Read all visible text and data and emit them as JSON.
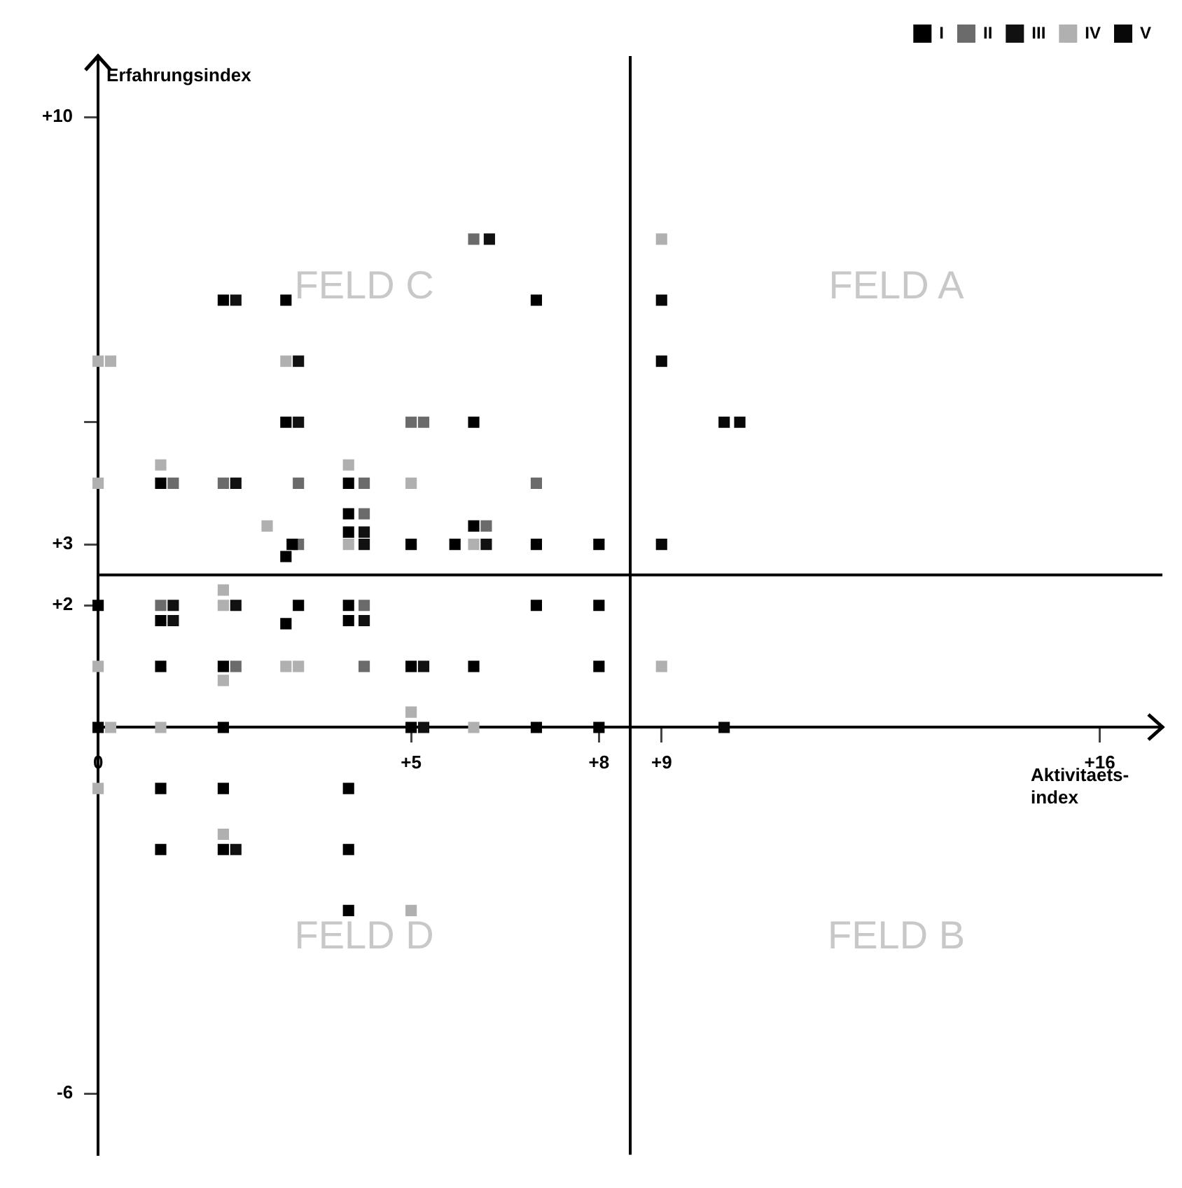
{
  "chart_data": {
    "type": "scatter",
    "xlabel": "Aktivitaets-index",
    "ylabel": "Erfahrungsindex",
    "xlim": [
      0,
      17
    ],
    "ylim": [
      -7,
      11
    ],
    "xticks": [
      0,
      {
        "value": 5,
        "label": "+5"
      },
      {
        "value": 8,
        "label": "+8"
      },
      {
        "value": 9,
        "label": "+9"
      },
      {
        "value": 16,
        "label": "+16"
      }
    ],
    "yticks": [
      -6,
      {
        "value": 2,
        "label": "+2"
      },
      {
        "value": 3,
        "label": "+3"
      },
      {
        "value": 5,
        "label": null
      },
      {
        "value": 10,
        "label": "+10"
      }
    ],
    "marker": "square",
    "legend": "top right",
    "ref_lines": [
      {
        "axis": "x",
        "value": 8.5,
        "color": "#000000"
      },
      {
        "axis": "y",
        "value": 2.5,
        "color": "#000000"
      }
    ],
    "annotations": [
      "FELD C",
      "FELD A",
      "FELD D",
      "FELD B"
    ],
    "series": [
      {
        "name": "I",
        "color": "#000000",
        "x": [
          2,
          3,
          7,
          3,
          6,
          1,
          4,
          4,
          4,
          6,
          3.1,
          5,
          5.7,
          7,
          8,
          3,
          0,
          1,
          3.2,
          3,
          4,
          4,
          7,
          8,
          1,
          2,
          5,
          6,
          8,
          0,
          2,
          5,
          7,
          8,
          1,
          2,
          4,
          1,
          2,
          4,
          4
        ],
        "values": [
          7,
          7,
          7,
          5,
          5,
          4,
          4,
          3.5,
          3.2,
          3.3,
          3,
          3,
          3,
          3,
          3,
          2.8,
          2,
          1.75,
          2,
          1.7,
          2,
          1.75,
          2,
          2,
          1,
          1,
          1,
          1,
          1,
          0,
          0,
          0,
          0,
          0,
          -1,
          -1,
          -1,
          -2,
          -2,
          -2,
          -3
        ]
      },
      {
        "name": "II",
        "color": "#6b6b6b",
        "x": [
          6,
          5,
          5.2,
          1.2,
          2,
          3.2,
          4.25,
          7,
          1,
          4.25,
          2.2,
          4.25,
          3.2,
          6.2,
          4.25
        ],
        "values": [
          8,
          5,
          5,
          4,
          4,
          4,
          4,
          4,
          2,
          2,
          1,
          1,
          3,
          3.3,
          3.5
        ]
      },
      {
        "name": "III",
        "color": "#111111",
        "x": [
          6.25,
          2.2,
          3.2,
          3.2,
          2.2,
          4.25,
          4.25,
          6.2,
          1.2,
          1.2,
          2.2,
          4.25,
          5.2,
          5.2,
          2.2
        ],
        "values": [
          8,
          7,
          6,
          5,
          4,
          3.2,
          3,
          3,
          2,
          1.75,
          2,
          1.75,
          1,
          0,
          -2
        ]
      },
      {
        "name": "IV",
        "color": "#b0b0b0",
        "x": [
          0,
          0.2,
          3,
          1,
          4,
          0,
          5,
          2,
          2,
          0,
          2,
          3,
          3.2,
          9,
          0.2,
          1,
          6,
          5,
          0,
          2,
          5,
          9,
          2.7,
          4,
          6
        ],
        "values": [
          6,
          6,
          6,
          4.3,
          4.3,
          4,
          4,
          2.25,
          2,
          1,
          0.77,
          1,
          1,
          1,
          0,
          0,
          0,
          0.25,
          -1,
          -1.75,
          -3,
          8,
          3.3,
          3,
          3
        ]
      },
      {
        "name": "V",
        "color": "#080808",
        "x": [
          9,
          9,
          10,
          10.25,
          9,
          10
        ],
        "values": [
          7,
          6,
          5,
          5,
          3,
          0
        ]
      }
    ]
  }
}
